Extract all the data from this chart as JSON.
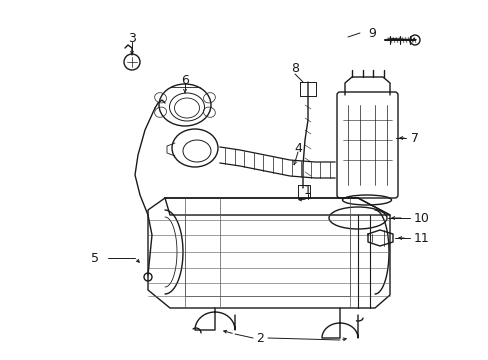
{
  "bg_color": "#ffffff",
  "line_color": "#1a1a1a",
  "lw": 1.0,
  "figsize": [
    4.89,
    3.6
  ],
  "dpi": 100,
  "label_fs": 8.5
}
